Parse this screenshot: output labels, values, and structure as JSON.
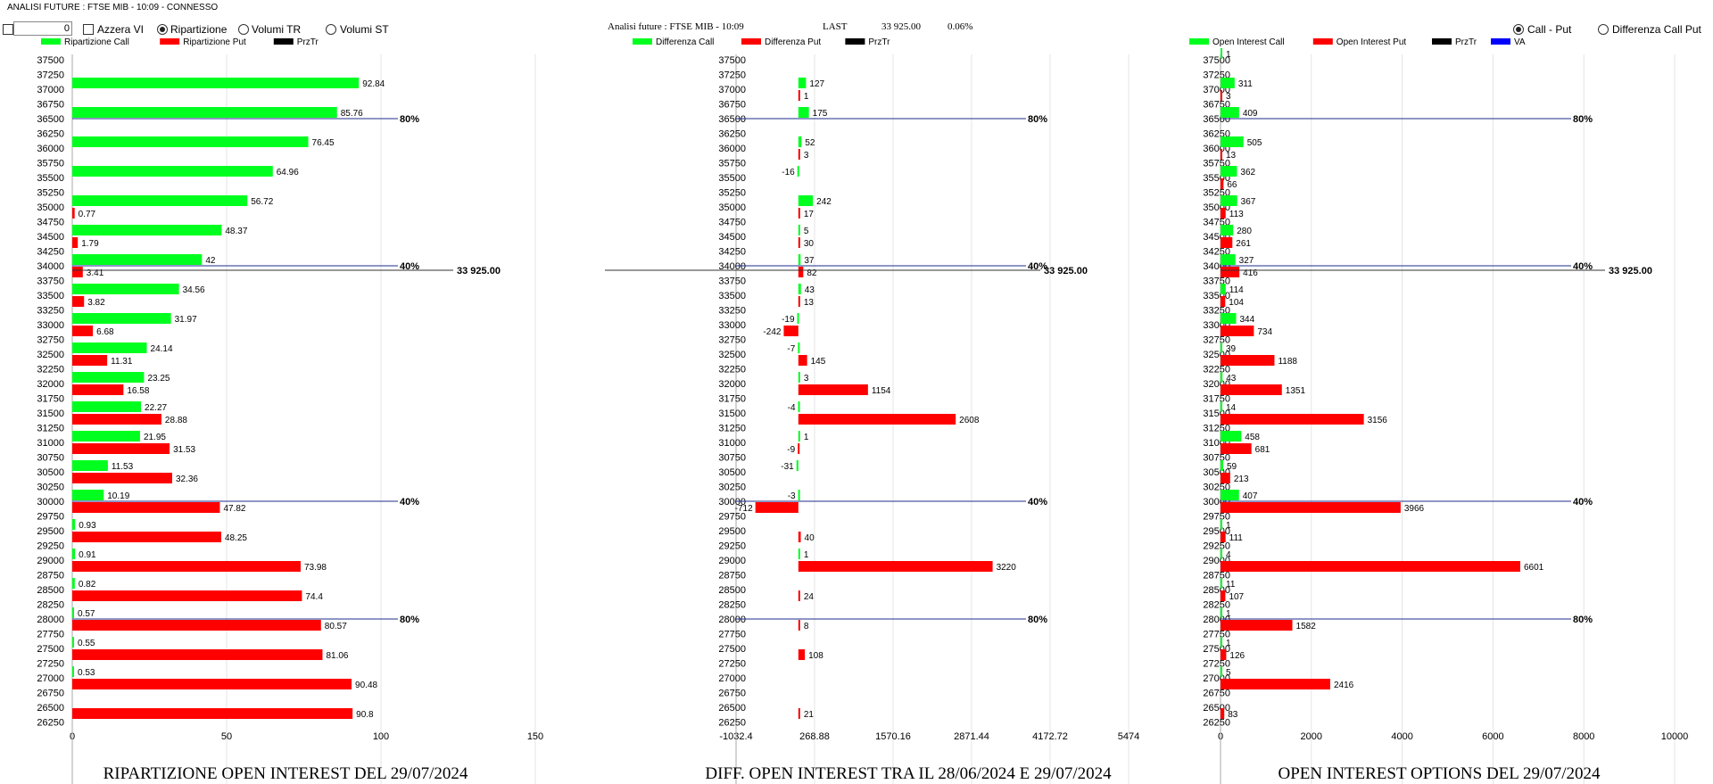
{
  "window": {
    "title": "ANALISI FUTURE : FTSE MIB - 10:09 - CONNESSO"
  },
  "controls": {
    "number_value": "0",
    "checkbox_azzera": "Azzera VI",
    "radio_ripartizione": "Ripartizione",
    "radio_volumi_tr": "Volumi TR",
    "radio_volumi_st": "Volumi ST",
    "radio_call_put": "Call - Put",
    "radio_diff_call_put": "Differenza Call Put"
  },
  "info": {
    "label": "Analisi future : FTSE MIB - 10:09",
    "last_label": "LAST",
    "last_value": "33 925.00",
    "change": "0.06%"
  },
  "colors": {
    "call": "#00ff1f",
    "put": "#ff0000",
    "prztr": "#000000",
    "va": "#0000ff",
    "level_line": "#1c2c8c",
    "grid": "#e4e4e4"
  },
  "strikes": [
    "37500",
    "37250",
    "37000",
    "36750",
    "36500",
    "36250",
    "36000",
    "35750",
    "35500",
    "35250",
    "35000",
    "34750",
    "34500",
    "34250",
    "34000",
    "33750",
    "33500",
    "33250",
    "33000",
    "32750",
    "32500",
    "32250",
    "32000",
    "31750",
    "31500",
    "31250",
    "31000",
    "30750",
    "30500",
    "30250",
    "30000",
    "29750",
    "29500",
    "29250",
    "29000",
    "28750",
    "28500",
    "28250",
    "28000",
    "27750",
    "27500",
    "27250",
    "27000",
    "26750",
    "26500",
    "26250"
  ],
  "markers": {
    "last_price_label": "33 925.00",
    "last_price_value": 33925,
    "levels": [
      {
        "strike": 36500,
        "label": "80%"
      },
      {
        "strike": 34000,
        "label": "40%"
      },
      {
        "strike": 30000,
        "label": "40%"
      },
      {
        "strike": 28000,
        "label": "80%"
      }
    ]
  },
  "chart_data": [
    {
      "type": "bar",
      "title": "RIPARTIZIONE OPEN INTEREST DEL 29/07/2024",
      "legend": [
        "Ripartizione Call",
        "Ripartizione Put",
        "PrzTr"
      ],
      "legend_placement": "top-left",
      "xlim": [
        0,
        150
      ],
      "xticks": [
        "0",
        "50",
        "100",
        "150"
      ],
      "grid": true,
      "series": [
        {
          "name": "Ripartizione Call",
          "strikes": [
            37000,
            36500,
            36000,
            35500,
            35000,
            34500,
            34000,
            33500,
            33000,
            32500,
            32000,
            31500,
            31000,
            30500,
            30000,
            29500,
            29000,
            28500,
            28000,
            27500,
            27000
          ],
          "values": [
            92.84,
            85.76,
            76.45,
            64.96,
            56.72,
            48.37,
            42,
            34.56,
            31.97,
            24.14,
            23.25,
            22.27,
            21.95,
            11.53,
            10.19,
            0.93,
            0.91,
            0.82,
            0.57,
            0.55,
            0.53
          ],
          "labels": [
            "92.84",
            "85.76",
            "76.45",
            "64.96",
            "56.72",
            "48.37",
            "42",
            "34.56",
            "31.97",
            "24.14",
            "23.25",
            "22.27",
            "21.95",
            "11.53",
            "10.19",
            "0.93",
            "0.91",
            "0.82",
            "0.57",
            "0.55",
            "0.53"
          ]
        },
        {
          "name": "Ripartizione Put",
          "strikes": [
            35000,
            34500,
            34000,
            33500,
            33000,
            32500,
            32000,
            31500,
            31000,
            30500,
            30000,
            29500,
            29000,
            28500,
            28000,
            27500,
            27000,
            26500
          ],
          "values": [
            0.77,
            1.79,
            3.41,
            3.82,
            6.68,
            11.31,
            16.58,
            28.88,
            31.53,
            32.36,
            47.82,
            48.25,
            73.98,
            74.4,
            80.57,
            81.06,
            90.48,
            90.8
          ],
          "labels": [
            "0.77",
            "1.79",
            "3.41",
            "3.82",
            "6.68",
            "11.31",
            "16.58",
            "28.88",
            "31.53",
            "32.36",
            "47.82",
            "48.25",
            "73.98",
            "74.4",
            "80.57",
            "81.06",
            "90.48",
            "90.8"
          ]
        }
      ]
    },
    {
      "type": "bar",
      "title": "DIFF. OPEN INTEREST TRA IL 28/06/2024 E 29/07/2024",
      "legend": [
        "Differenza Call",
        "Differenza Put",
        "PrzTr"
      ],
      "legend_placement": "top-left",
      "xlim": [
        -1032.4,
        5474
      ],
      "xticks": [
        "-1032.4",
        "268.88",
        "1570.16",
        "2871.44",
        "4172.72",
        "5474"
      ],
      "grid": true,
      "series": [
        {
          "name": "Differenza Call",
          "strikes": [
            37000,
            36500,
            36000,
            35500,
            35000,
            34500,
            34000,
            33500,
            33000,
            32500,
            32000,
            31500,
            31000,
            30500,
            30000,
            29000
          ],
          "values": [
            127,
            175,
            52,
            -16,
            242,
            5,
            37,
            43,
            -19,
            -7,
            3,
            -4,
            1,
            -31,
            -3,
            1
          ],
          "labels": [
            "127",
            "175",
            "52",
            "-16",
            "242",
            "5",
            "37",
            "43",
            "-19",
            "-7",
            "3",
            "-4",
            "1",
            "-31",
            "-3",
            "1"
          ]
        },
        {
          "name": "Differenza Put",
          "strikes": [
            37000,
            36000,
            35000,
            34500,
            34000,
            33500,
            33000,
            32500,
            32000,
            31500,
            31000,
            30000,
            29500,
            29000,
            28500,
            28000,
            27500,
            26500
          ],
          "values": [
            1,
            3,
            17,
            30,
            82,
            13,
            -242,
            145,
            1154,
            2608,
            -9,
            -712,
            40,
            3220,
            24,
            8,
            108,
            21
          ],
          "labels": [
            "1",
            "3",
            "17",
            "30",
            "82",
            "13",
            "-242",
            "145",
            "1154",
            "2608",
            "-9",
            "-712",
            "40",
            "3220",
            "24",
            "8",
            "108",
            "21"
          ]
        }
      ]
    },
    {
      "type": "bar",
      "title": "OPEN INTEREST OPTIONS DEL 29/07/2024",
      "legend": [
        "Open Interest Call",
        "Open Interest Put",
        "PrzTr",
        "VA"
      ],
      "legend_placement": "top-left",
      "xlim": [
        0,
        10000
      ],
      "xticks": [
        "0",
        "2000",
        "4000",
        "6000",
        "8000",
        "10000"
      ],
      "grid": true,
      "series": [
        {
          "name": "Open Interest Call",
          "strikes": [
            37500,
            37000,
            36500,
            36000,
            35500,
            35000,
            34500,
            34000,
            33500,
            33000,
            32500,
            32000,
            31500,
            31000,
            30500,
            30000,
            29500,
            29000,
            28500,
            28000,
            27500,
            27000
          ],
          "values": [
            1,
            311,
            409,
            505,
            362,
            367,
            280,
            327,
            114,
            344,
            39,
            43,
            14,
            458,
            59,
            407,
            1,
            4,
            11,
            1,
            1,
            5
          ],
          "labels": [
            "1",
            "311",
            "409",
            "505",
            "362",
            "367",
            "280",
            "327",
            "114",
            "344",
            "39",
            "43",
            "14",
            "458",
            "59",
            "407",
            "1",
            "4",
            "11",
            "1",
            "1",
            "5"
          ]
        },
        {
          "name": "Open Interest Put",
          "strikes": [
            37000,
            36000,
            35500,
            35000,
            34500,
            34000,
            33500,
            33000,
            32500,
            32000,
            31500,
            31000,
            30500,
            30000,
            29500,
            29000,
            28500,
            28000,
            27500,
            27000,
            26500
          ],
          "values": [
            3,
            13,
            66,
            113,
            261,
            416,
            104,
            734,
            1188,
            1351,
            3156,
            681,
            213,
            3966,
            111,
            6601,
            107,
            1582,
            126,
            2416,
            83
          ],
          "labels": [
            "3",
            "13",
            "66",
            "113",
            "261",
            "416",
            "104",
            "734",
            "1188",
            "1351",
            "3156",
            "681",
            "213",
            "3966",
            "111",
            "6601",
            "107",
            "1582",
            "126",
            "2416",
            "83"
          ]
        }
      ]
    }
  ]
}
